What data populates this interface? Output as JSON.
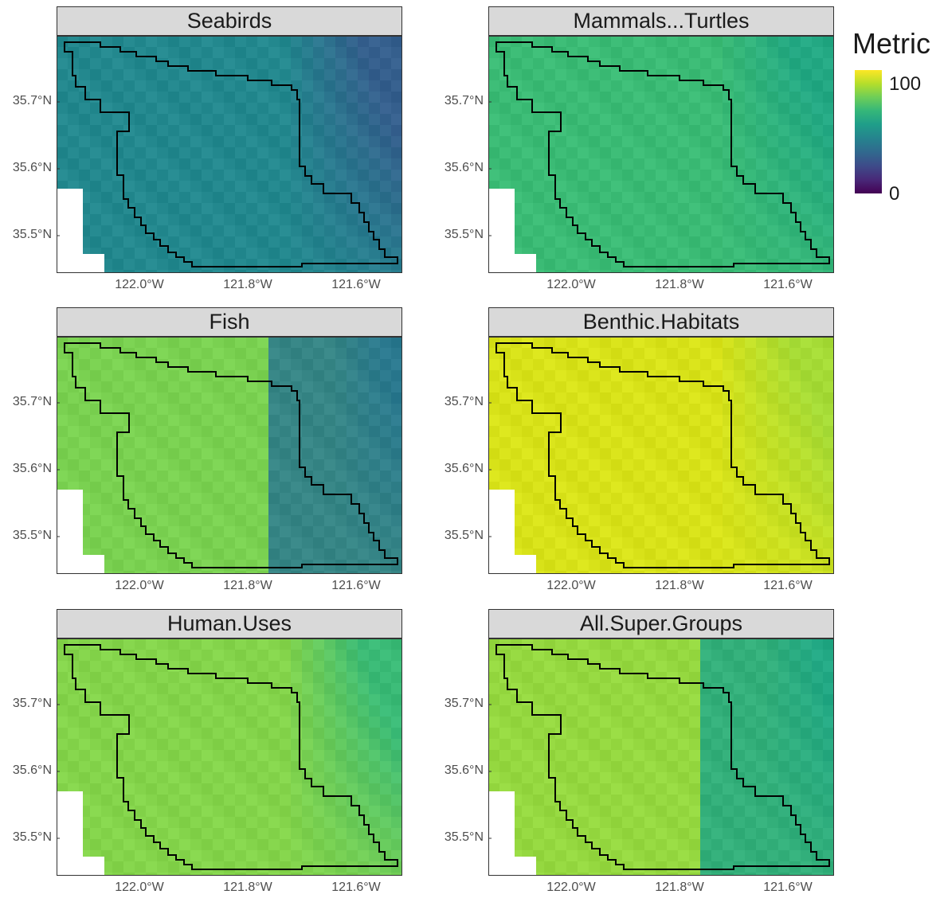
{
  "legend": {
    "title": "Metric",
    "max_label": "100",
    "min_label": "0",
    "colormap": "viridis"
  },
  "y_ticks": [
    "35.7°N",
    "35.6°N",
    "35.5°N"
  ],
  "x_ticks": [
    "122.0°W",
    "121.8°W",
    "121.6°W"
  ],
  "panels": [
    {
      "title": "Seabirds",
      "base_color": "#23888e",
      "east_color": "#355f8d",
      "split": false
    },
    {
      "title": "Mammals...Turtles",
      "base_color": "#3bbb75",
      "east_color": "#23a883",
      "split": false
    },
    {
      "title": "Fish",
      "base_color": "#7ad151",
      "east_color": "#2a788e",
      "split": true
    },
    {
      "title": "Benthic.Habitats",
      "base_color": "#d8e219",
      "east_color": "#a5db36",
      "split": false
    },
    {
      "title": "Human.Uses",
      "base_color": "#84d44b",
      "east_color": "#3aba76",
      "split": false
    },
    {
      "title": "All.Super.Groups",
      "base_color": "#95d840",
      "east_color": "#22a884",
      "split": true
    }
  ]
}
